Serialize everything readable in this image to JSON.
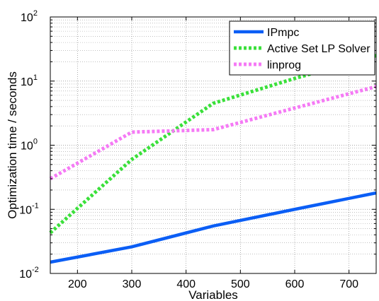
{
  "chart_data": {
    "type": "line",
    "title": "",
    "xlabel": "Variables",
    "ylabel": "Optimization time / seconds",
    "xlim": [
      150,
      750
    ],
    "ylim": [
      0.01,
      100
    ],
    "yscale": "log",
    "grid": true,
    "legend_position": "top-right",
    "x_ticks": [
      200,
      300,
      400,
      500,
      600,
      700
    ],
    "x_tick_labels": [
      "200",
      "300",
      "400",
      "500",
      "600",
      "700"
    ],
    "y_ticks": [
      0.01,
      0.1,
      1,
      10,
      100
    ],
    "y_tick_labels": [
      {
        "base": "10",
        "exp": "-2"
      },
      {
        "base": "10",
        "exp": "-1"
      },
      {
        "base": "10",
        "exp": "0"
      },
      {
        "base": "10",
        "exp": "1"
      },
      {
        "base": "10",
        "exp": "2"
      }
    ],
    "series": [
      {
        "name": "IPmpc",
        "color": "#0b5ef5",
        "style": "solid",
        "x": [
          150,
          300,
          450,
          600,
          750
        ],
        "y": [
          0.015,
          0.026,
          0.055,
          0.1,
          0.18
        ]
      },
      {
        "name": "Active Set LP Solver",
        "color": "#3ae03a",
        "style": "dotted",
        "x": [
          150,
          300,
          450,
          600,
          750
        ],
        "y": [
          0.043,
          0.6,
          4.5,
          11,
          25
        ]
      },
      {
        "name": "linprog",
        "color": "#f57af5",
        "style": "dotted",
        "x": [
          150,
          300,
          450,
          600,
          750
        ],
        "y": [
          0.3,
          1.6,
          1.75,
          3.8,
          8.2
        ]
      }
    ]
  }
}
